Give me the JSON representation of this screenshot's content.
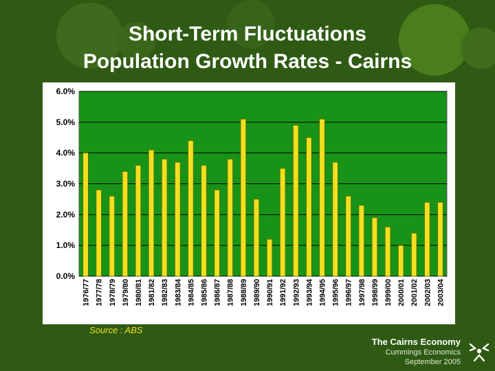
{
  "slide": {
    "title_line1": "Short-Term Fluctuations",
    "title_line2": "Population Growth Rates - Cairns",
    "source": "Source :  ABS",
    "org_name": "The Cairns Economy",
    "org_author": "Cummings Economics",
    "org_date": "September 2005"
  },
  "colors": {
    "background": "#2f5a14",
    "plot_area": "#179417",
    "bar": "#f0e020",
    "title": "#ffffff",
    "source_text": "#f0e020"
  },
  "chart_data": {
    "type": "bar",
    "title": "",
    "xlabel": "",
    "ylabel": "",
    "ylim": [
      0,
      6
    ],
    "y_ticks": [
      0,
      1,
      2,
      3,
      4,
      5,
      6
    ],
    "y_tick_labels": [
      "0.0%",
      "1.0%",
      "2.0%",
      "3.0%",
      "4.0%",
      "5.0%",
      "6.0%"
    ],
    "grid": true,
    "legend": "none",
    "categories": [
      "1976/77",
      "1977/78",
      "1978/79",
      "1979/80",
      "1980/81",
      "1981/82",
      "1982/83",
      "1983/84",
      "1984/85",
      "1985/86",
      "1986/87",
      "1987/88",
      "1988/89",
      "1989/90",
      "1990/91",
      "1991/92",
      "1992/93",
      "1993/94",
      "1994/95",
      "1995/96",
      "1996/97",
      "1997/98",
      "1998/99",
      "1999/00",
      "2000/01",
      "2001/02",
      "2002/03",
      "2003/04"
    ],
    "values": [
      4.0,
      2.8,
      2.6,
      3.4,
      3.6,
      4.1,
      3.8,
      3.7,
      4.4,
      3.6,
      2.8,
      3.8,
      5.1,
      2.5,
      1.2,
      3.5,
      4.9,
      4.5,
      5.1,
      3.7,
      2.6,
      2.3,
      1.9,
      1.6,
      1.0,
      1.4,
      2.4,
      2.4
    ]
  }
}
